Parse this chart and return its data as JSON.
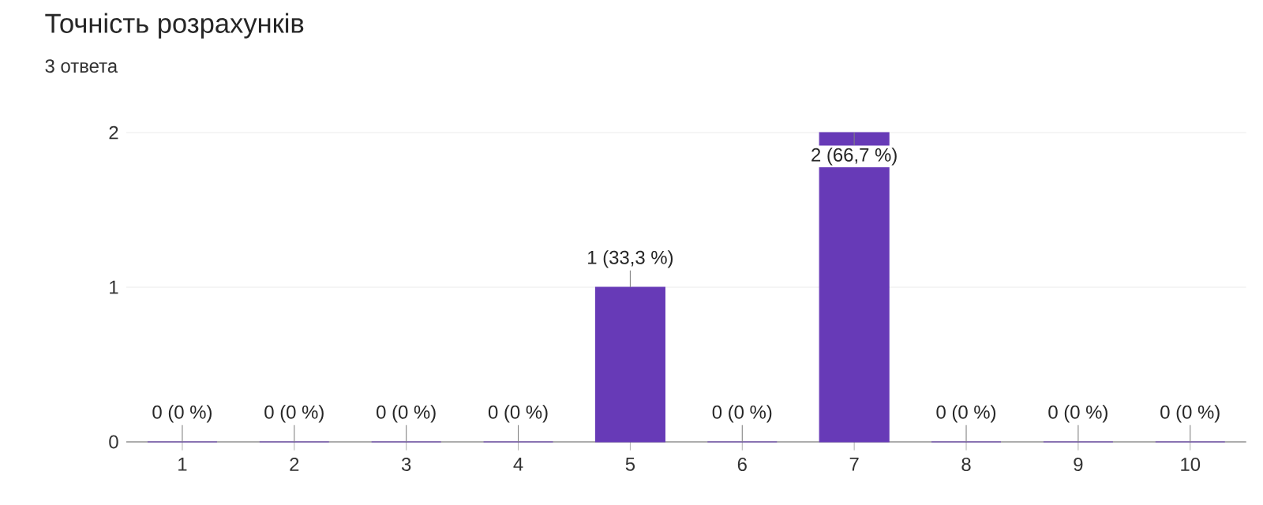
{
  "chart_data": {
    "type": "bar",
    "title": "Точність розрахунків",
    "subtitle": "3 ответа",
    "categories": [
      "1",
      "2",
      "3",
      "4",
      "5",
      "6",
      "7",
      "8",
      "9",
      "10"
    ],
    "values": [
      0,
      0,
      0,
      0,
      1,
      0,
      2,
      0,
      0,
      0
    ],
    "value_labels": [
      "0 (0 %)",
      "0 (0 %)",
      "0 (0 %)",
      "0 (0 %)",
      "1 (33,3 %)",
      "0 (0 %)",
      "2 (66,7 %)",
      "0 (0 %)",
      "0 (0 %)",
      "0 (0 %)"
    ],
    "color": "#673ab7",
    "ylim": [
      0,
      2
    ],
    "yticks": [
      0,
      1,
      2
    ],
    "grid": "y"
  }
}
